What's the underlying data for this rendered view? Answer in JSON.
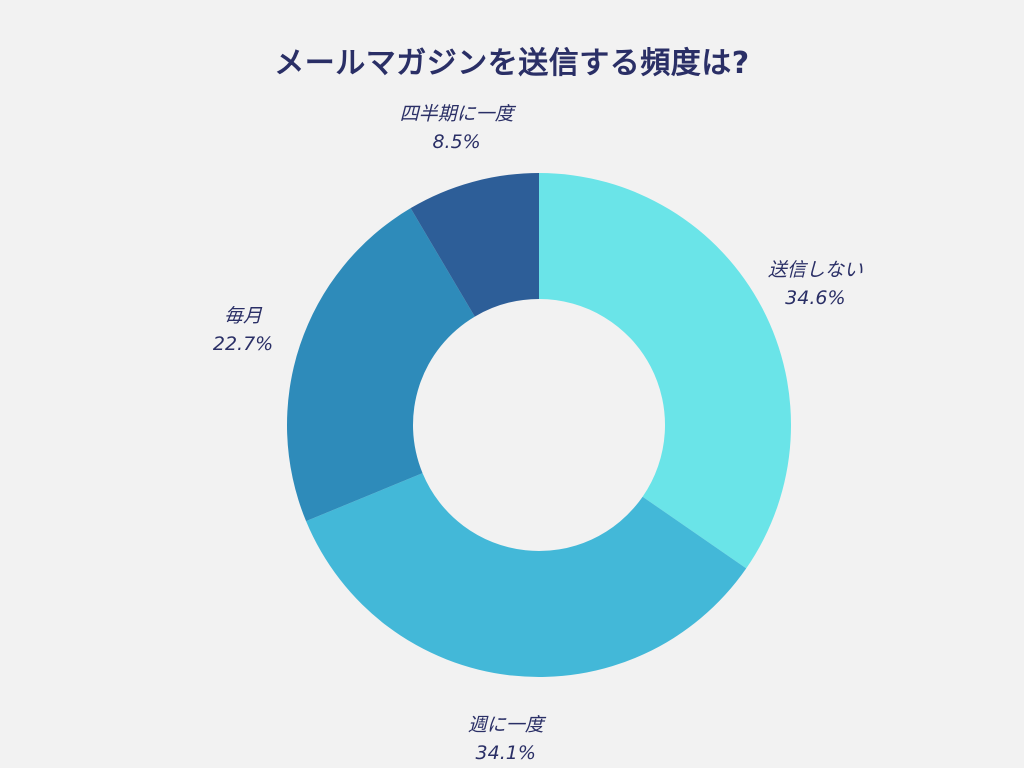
{
  "chart_data": {
    "type": "pie",
    "title": "メールマガジンを送信する頻度は?",
    "donut": true,
    "start": "top",
    "direction": "clockwise",
    "slices": [
      {
        "label": "送信しない",
        "value": 34.6,
        "value_label": "34.6%",
        "color": "#6ae4e8"
      },
      {
        "label": "週に一度",
        "value": 34.1,
        "value_label": "34.1%",
        "color": "#43b8d8"
      },
      {
        "label": "毎月",
        "value": 22.7,
        "value_label": "22.7%",
        "color": "#2e8bba"
      },
      {
        "label": "四半期に一度",
        "value": 8.5,
        "value_label": "8.5%",
        "color": "#2d5e98"
      }
    ]
  }
}
